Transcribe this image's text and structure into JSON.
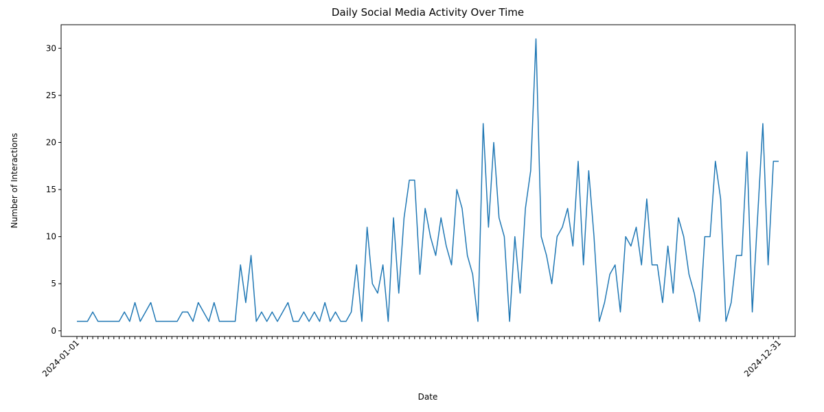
{
  "chart_data": {
    "type": "line",
    "title": "Daily Social Media Activity Over Time",
    "x_label": "Date",
    "y_label": "Number of Interactions",
    "categories": [
      "2024-01-01",
      null,
      null,
      null,
      null,
      null,
      null,
      null,
      null,
      null,
      null,
      null,
      null,
      null,
      null,
      null,
      null,
      null,
      null,
      null,
      null,
      null,
      null,
      null,
      null,
      null,
      null,
      null,
      null,
      null,
      null,
      null,
      null,
      null,
      null,
      null,
      null,
      null,
      null,
      null,
      null,
      null,
      null,
      null,
      null,
      null,
      null,
      null,
      null,
      null,
      null,
      null,
      null,
      null,
      null,
      null,
      null,
      null,
      null,
      null,
      null,
      null,
      null,
      null,
      null,
      null,
      null,
      null,
      null,
      null,
      null,
      null,
      null,
      null,
      null,
      null,
      null,
      null,
      null,
      null,
      null,
      null,
      null,
      null,
      null,
      null,
      null,
      null,
      null,
      null,
      null,
      null,
      null,
      null,
      null,
      null,
      null,
      null,
      null,
      null,
      null,
      null,
      null,
      null,
      null,
      null,
      null,
      null,
      null,
      null,
      null,
      null,
      null,
      null,
      null,
      null,
      null,
      null,
      null,
      null,
      null,
      null,
      null,
      null,
      null,
      null,
      null,
      null,
      null,
      null,
      null,
      null,
      null,
      "2024-12-31"
    ],
    "series": [
      {
        "name": "Interactions",
        "color": "#1f77b4",
        "values": [
          1,
          1,
          1,
          2,
          1,
          1,
          1,
          1,
          1,
          2,
          1,
          3,
          1,
          2,
          3,
          1,
          1,
          1,
          1,
          1,
          2,
          2,
          1,
          3,
          2,
          1,
          3,
          1,
          1,
          1,
          1,
          7,
          3,
          8,
          1,
          2,
          1,
          2,
          1,
          2,
          3,
          1,
          1,
          2,
          1,
          2,
          1,
          3,
          1,
          2,
          1,
          1,
          2,
          7,
          1,
          11,
          5,
          4,
          7,
          1,
          12,
          4,
          12,
          16,
          16,
          6,
          13,
          10,
          8,
          12,
          9,
          7,
          15,
          13,
          8,
          6,
          1,
          22,
          11,
          20,
          12,
          10,
          1,
          10,
          4,
          13,
          17,
          31,
          10,
          8,
          5,
          10,
          11,
          13,
          9,
          18,
          7,
          17,
          10,
          1,
          3,
          6,
          7,
          2,
          10,
          9,
          11,
          7,
          14,
          7,
          7,
          3,
          9,
          4,
          12,
          10,
          6,
          4,
          1,
          10,
          10,
          18,
          14,
          1,
          3,
          8,
          8,
          19,
          2,
          12,
          22,
          7,
          18,
          18
        ]
      }
    ],
    "ylim": [
      -0.6,
      32.5
    ],
    "yticks": [
      0,
      5,
      10,
      15,
      20,
      25,
      30
    ]
  }
}
